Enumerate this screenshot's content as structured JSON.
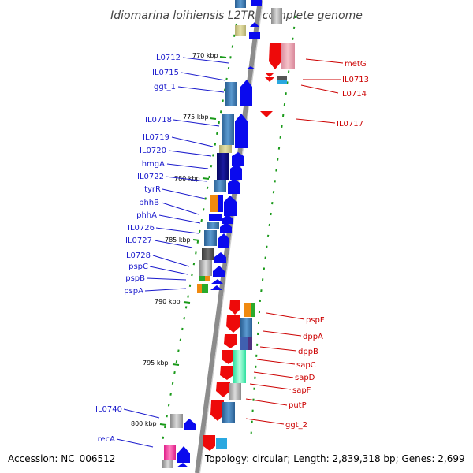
{
  "title": "Idiomarina loihiensis L2TR, complete genome",
  "accession": "Accession: NC_006512",
  "topology": "Topology: circular; Length: 2,839,318 bp; Genes: 2,699",
  "kbp_marks": [
    "770 kbp",
    "775 kbp",
    "780 kbp",
    "785 kbp",
    "790 kbp",
    "795 kbp",
    "800 kbp"
  ],
  "genes_left": [
    "IL0712",
    "IL0715",
    "ggt_1",
    "IL0718",
    "IL0719",
    "IL0720",
    "hmgA",
    "IL0722",
    "tyrR",
    "phhB",
    "phhA",
    "IL0726",
    "IL0727",
    "IL0728",
    "pspC",
    "pspB",
    "pspA",
    "IL0740",
    "recA"
  ],
  "genes_right": [
    "metG",
    "IL0713",
    "IL0714",
    "IL0717",
    "pspF",
    "dppA",
    "dppB",
    "sapC",
    "sapD",
    "sapF",
    "putP",
    "ggt_2"
  ],
  "colors": {
    "forward": "#0a0aee",
    "reverse": "#ee0a0a",
    "left_label": "#1a1acc",
    "right_label": "#cc0000",
    "ticks": "#1a9a1a",
    "backbone": "#8c8c8c"
  }
}
